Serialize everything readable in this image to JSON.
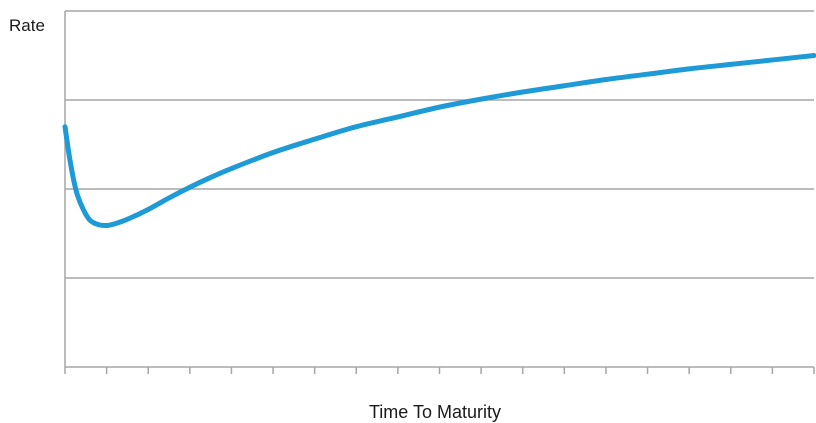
{
  "chart_data": {
    "type": "line",
    "title": "",
    "xlabel": "Time To Maturity",
    "ylabel": "Rate",
    "xlim": [
      0,
      18
    ],
    "ylim": [
      0,
      4
    ],
    "x_tick_count": 18,
    "y_gridlines": [
      1,
      2,
      3,
      4
    ],
    "grid": "horizontal",
    "legend": "none",
    "series": [
      {
        "color": "#1e9ad6",
        "x": [
          0,
          0.1,
          0.2,
          0.3,
          0.45,
          0.6,
          0.8,
          1.0,
          1.2,
          1.5,
          2,
          2.5,
          3,
          3.5,
          4,
          5,
          6,
          7,
          8,
          9,
          10,
          11,
          12,
          13,
          14,
          15,
          16,
          17,
          18
        ],
        "values": [
          2.7,
          2.38,
          2.12,
          1.93,
          1.76,
          1.65,
          1.6,
          1.59,
          1.61,
          1.66,
          1.77,
          1.9,
          2.02,
          2.13,
          2.23,
          2.41,
          2.56,
          2.7,
          2.81,
          2.92,
          3.01,
          3.09,
          3.16,
          3.23,
          3.29,
          3.35,
          3.4,
          3.45,
          3.5
        ]
      }
    ]
  }
}
